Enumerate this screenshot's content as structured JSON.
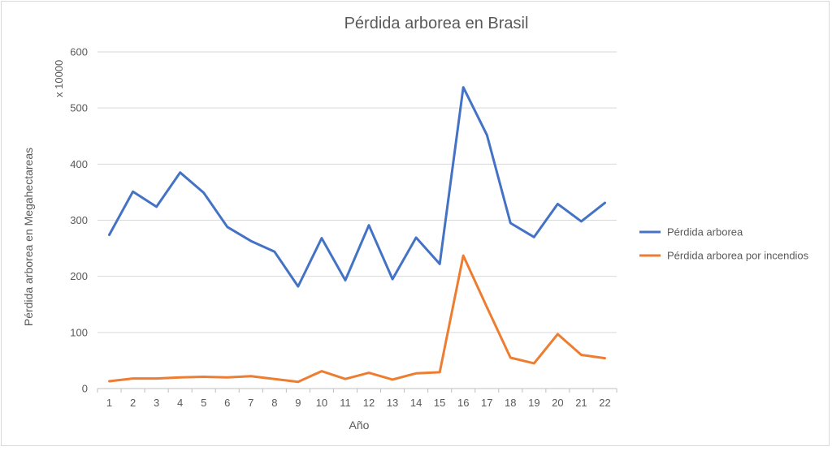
{
  "chart_data": {
    "type": "line",
    "title": "Pérdida arborea en Brasil",
    "xlabel": "Año",
    "ylabel": "Pérdida arborea en Megahectareas",
    "y_multiplier_label": "x 10000",
    "ylim": [
      0,
      600
    ],
    "yticks": [
      0,
      100,
      200,
      300,
      400,
      500,
      600
    ],
    "grid": true,
    "legend_position": "right",
    "categories": [
      "1",
      "2",
      "3",
      "4",
      "5",
      "6",
      "7",
      "8",
      "9",
      "10",
      "11",
      "12",
      "13",
      "14",
      "15",
      "16",
      "17",
      "18",
      "19",
      "20",
      "21",
      "22"
    ],
    "series": [
      {
        "name": "Pérdida arborea",
        "color": "#4472c4",
        "values": [
          274,
          351,
          324,
          385,
          349,
          288,
          263,
          244,
          182,
          268,
          193,
          291,
          195,
          269,
          222,
          537,
          452,
          295,
          270,
          329,
          298,
          331
        ]
      },
      {
        "name": "Pérdida arborea por incendios",
        "color": "#ed7d31",
        "values": [
          13,
          18,
          18,
          20,
          21,
          20,
          22,
          17,
          12,
          31,
          17,
          28,
          16,
          27,
          29,
          237,
          145,
          55,
          45,
          97,
          60,
          54
        ]
      }
    ]
  }
}
